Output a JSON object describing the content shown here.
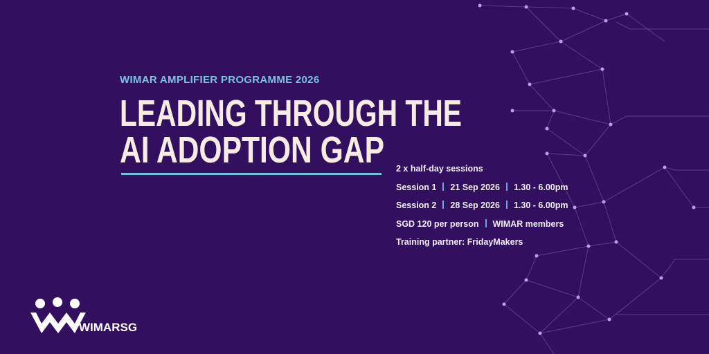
{
  "kicker": "WIMAR AMPLIFIER PROGRAMME 2026",
  "title": [
    "LEADING THROUGH THE",
    "AI ADOPTION GAP"
  ],
  "details": [
    [
      "2 x half-day sessions"
    ],
    [
      "Session 1",
      "21 Sep 2026",
      "1.30 - 6.00pm"
    ],
    [
      "Session 2",
      "28 Sep 2026",
      "1.30 - 6.00pm"
    ],
    [
      "SGD 120 per person",
      "WIMAR members"
    ],
    [
      "Training partner: FridayMakers"
    ]
  ],
  "logo": "WIMARSG"
}
